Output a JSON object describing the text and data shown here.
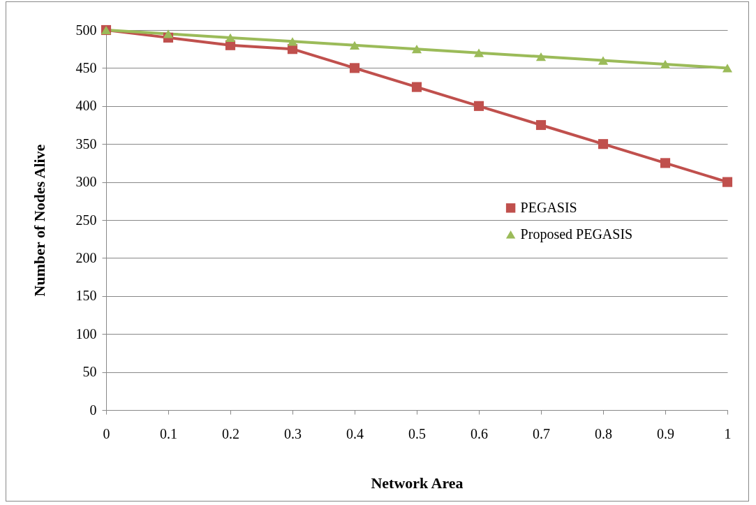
{
  "chart_data": {
    "type": "line",
    "xlabel": "Network Area",
    "ylabel": "Number of Nodes Alive",
    "categories": [
      "0",
      "0.1",
      "0.2",
      "0.3",
      "0.4",
      "0.5",
      "0.6",
      "0.7",
      "0.8",
      "0.9",
      "1"
    ],
    "series": [
      {
        "name": "PEGASIS",
        "color": "#c0504d",
        "marker": "square",
        "values": [
          500,
          490,
          480,
          475,
          450,
          425,
          400,
          375,
          350,
          325,
          300
        ]
      },
      {
        "name": "Proposed PEGASIS",
        "color": "#9bbb59",
        "marker": "triangle",
        "values": [
          500,
          495,
          490,
          485,
          480,
          475,
          470,
          465,
          460,
          455,
          450
        ]
      }
    ],
    "ylim": [
      0,
      500
    ],
    "yticks": [
      0,
      50,
      100,
      150,
      200,
      250,
      300,
      350,
      400,
      450,
      500
    ],
    "grid": "y",
    "legend": "right",
    "line_style": "solid"
  }
}
